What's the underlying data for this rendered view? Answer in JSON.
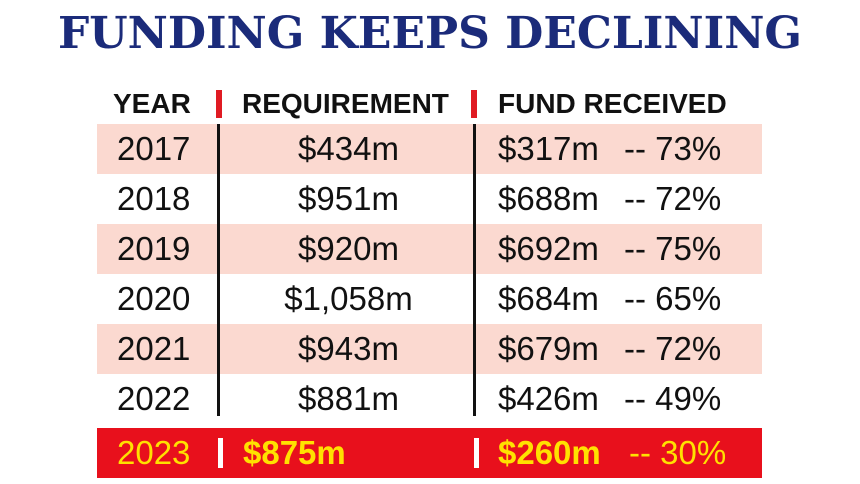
{
  "title": "FUNDING KEEPS DECLINING",
  "chart_data": {
    "type": "table",
    "title": "FUNDING KEEPS DECLINING",
    "columns": [
      "YEAR",
      "REQUIREMENT",
      "FUND RECEIVED"
    ],
    "rows": [
      {
        "year": "2017",
        "requirement": "$434m",
        "received": "$317m",
        "percent": "-- 73%"
      },
      {
        "year": "2018",
        "requirement": "$951m",
        "received": "$688m",
        "percent": "-- 72%"
      },
      {
        "year": "2019",
        "requirement": "$920m",
        "received": "$692m",
        "percent": "-- 75%"
      },
      {
        "year": "2020",
        "requirement": "$1,058m",
        "received": "$684m",
        "percent": "-- 65%"
      },
      {
        "year": "2021",
        "requirement": "$943m",
        "received": "$679m",
        "percent": "-- 72%"
      },
      {
        "year": "2022",
        "requirement": "$881m",
        "received": "$426m",
        "percent": "-- 49%"
      },
      {
        "year": "2023",
        "requirement": "$875m",
        "received": "$260m",
        "percent": "-- 30%"
      }
    ]
  },
  "colors": {
    "title": "#1b2b7a",
    "separator": "#e01b23",
    "row_shade": "#fbd9d0",
    "highlight_bg": "#e8101c",
    "highlight_text": "#ffe100"
  }
}
